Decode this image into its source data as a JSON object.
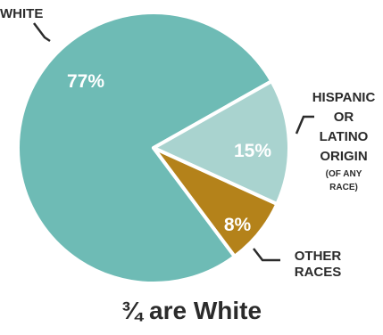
{
  "chart_data": {
    "type": "pie",
    "slices": [
      {
        "name": "WHITE",
        "label_lines": [
          "WHITE"
        ],
        "value": 77,
        "value_label": "77%",
        "color": "#6ebbb5"
      },
      {
        "name": "HISPANIC OR LATINO ORIGIN (OF ANY RACE)",
        "label_lines": [
          "HISPANIC",
          "OR",
          "LATINO",
          "ORIGIN"
        ],
        "note_lines": [
          "(OF ANY",
          "RACE)"
        ],
        "value": 15,
        "value_label": "15%",
        "color": "#a9d3cf"
      },
      {
        "name": "OTHER RACES",
        "label_lines": [
          "OTHER",
          "RACES"
        ],
        "value": 8,
        "value_label": "8%",
        "color": "#b4821a"
      }
    ],
    "caption": "¾ are White"
  }
}
